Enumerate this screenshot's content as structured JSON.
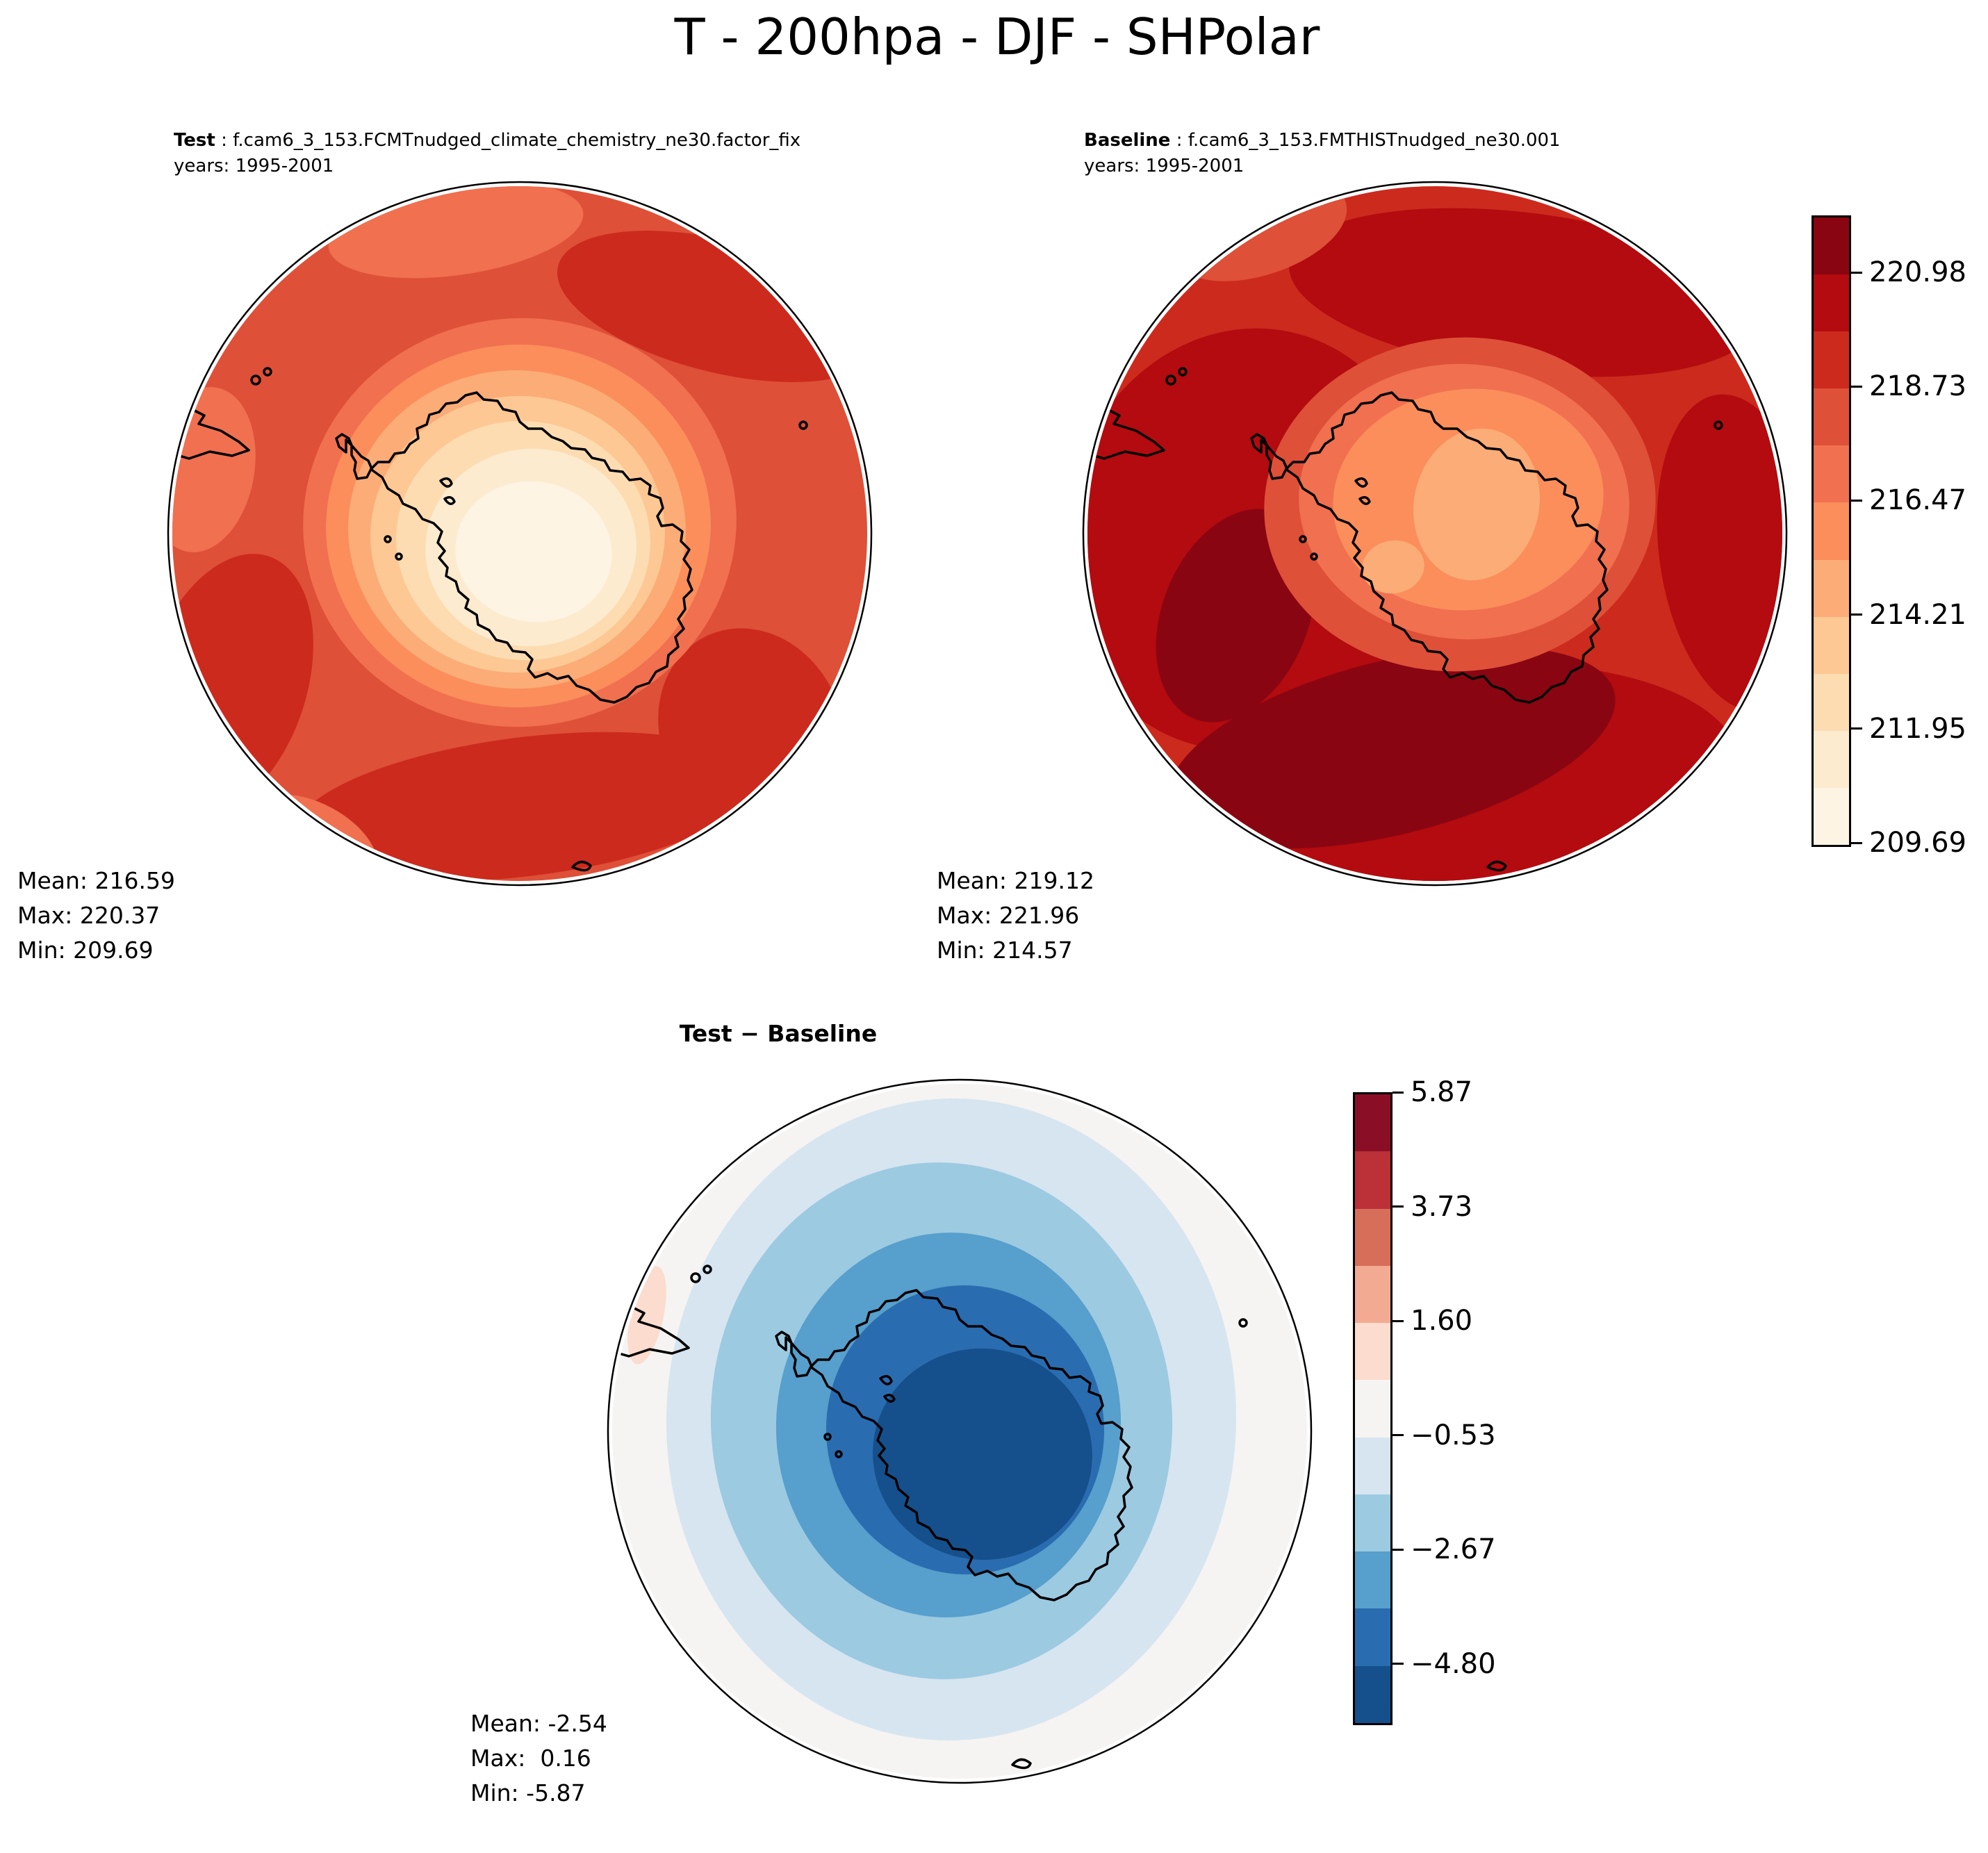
{
  "title": "T - 200hpa - DJF - SHPolar",
  "panels": {
    "test": {
      "label": "Test",
      "runline": " : f.cam6_3_153.FCMTnudged_climate_chemistry_ne30.factor_fix",
      "years": "years: 1995-2001",
      "stats": {
        "mean": "Mean: 216.59",
        "max": "Max: 220.37",
        "min": "Min: 209.69"
      }
    },
    "baseline": {
      "label": "Baseline",
      "runline": " : f.cam6_3_153.FMTHISTnudged_ne30.001",
      "years": "years: 1995-2001",
      "stats": {
        "mean": "Mean: 219.12",
        "max": "Max: 221.96",
        "min": "Min: 214.57"
      }
    },
    "diff": {
      "title": "Test − Baseline",
      "stats": {
        "mean": "Mean: -2.54",
        "max": "Max:  0.16",
        "min": "Min: -5.87"
      }
    }
  },
  "colorbars": {
    "absolute": {
      "ticks": [
        "220.98",
        "218.73",
        "216.47",
        "214.21",
        "211.95",
        "209.69"
      ],
      "colors_low_to_high": [
        "#fdf4e3",
        "#fcebcf",
        "#fddcb2",
        "#fdc894",
        "#fbac77",
        "#fb8e5b",
        "#f07050",
        "#de5038",
        "#cc2a1d",
        "#b30b0f",
        "#8a0512"
      ]
    },
    "diff": {
      "ticks": [
        "5.87",
        "3.73",
        "1.60",
        "−0.53",
        "−2.67",
        "−4.80"
      ],
      "colors_low_to_high": [
        "#15508c",
        "#2a6cb0",
        "#579fcc",
        "#9ccae1",
        "#d7e5f0",
        "#f5f4f3",
        "#fbdcce",
        "#f2ab92",
        "#d76e59",
        "#bc3038",
        "#8a0f26"
      ]
    }
  },
  "colors": {
    "background": "#ffffff",
    "coastline": "#000000",
    "text": "#000000"
  },
  "chart_data": {
    "type": "heatmap",
    "subtype": "filled-contour-polar-stereographic-maps",
    "title": "T - 200hpa - DJF - SHPolar",
    "variable": "T",
    "pressure_level": "200hpa",
    "season": "DJF",
    "region": "SHPolar",
    "panels": [
      {
        "label": "Test",
        "run": "f.cam6_3_153.FCMTnudged_climate_chemistry_ne30.factor_fix",
        "years": "1995-2001",
        "stats": {
          "mean": 216.59,
          "max": 220.37,
          "min": 209.69
        },
        "colormap": "OrRd",
        "contour_levels": [
          209.69,
          210.82,
          211.95,
          213.08,
          214.21,
          215.34,
          216.47,
          217.6,
          218.73,
          219.86,
          220.98,
          222.11
        ],
        "colorbar_ticks": [
          220.98,
          218.73,
          216.47,
          214.21,
          211.95,
          209.69
        ],
        "description": "Warm red ring around the domain edge with the coldest cream-colored minimum centered over Antarctica; darker red maxima lobes at the lower and upper-right edges."
      },
      {
        "label": "Baseline",
        "run": "f.cam6_3_153.FMTHISTnudged_ne30.001",
        "years": "1995-2001",
        "stats": {
          "mean": 219.12,
          "max": 221.96,
          "min": 214.57
        },
        "colormap": "OrRd",
        "contour_levels": [
          209.69,
          210.82,
          211.95,
          213.08,
          214.21,
          215.34,
          216.47,
          217.6,
          218.73,
          219.86,
          220.98,
          222.11
        ],
        "colorbar_ticks": [
          220.98,
          218.73,
          216.47,
          214.21,
          211.95,
          209.69
        ],
        "description": "Overall warmer than Test: deep dark-red crescent over the ocean from the left around the bottom, light orange minimum confined over East Antarctica."
      },
      {
        "label": "Test − Baseline",
        "stats": {
          "mean": -2.54,
          "max": 0.16,
          "min": -5.87
        },
        "colormap": "RdBu_r",
        "contour_levels": [
          -5.87,
          -4.8,
          -3.73,
          -2.67,
          -1.6,
          -0.53,
          0.53,
          1.6,
          2.67,
          3.73,
          4.8,
          5.87
        ],
        "colorbar_ticks": [
          5.87,
          3.73,
          1.6,
          -0.53,
          -2.67,
          -4.8
        ],
        "description": "Negative (blue) difference everywhere, intensifying toward a dark-blue minimum centered over Antarctica; near-zero white around the domain rim with a tiny warm sliver near South America."
      }
    ]
  }
}
